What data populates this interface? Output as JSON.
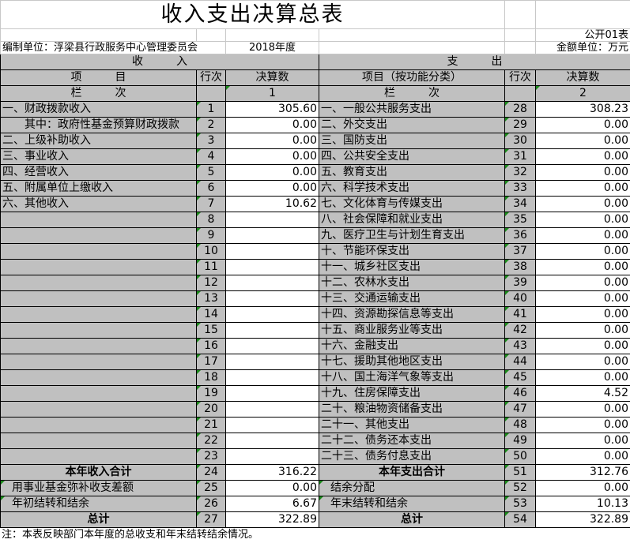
{
  "title": "收入支出决算总表",
  "form_code": "公开01表",
  "unit_label": "编制单位：浮梁县行政服务中心管理委员会",
  "year": "2018年度",
  "amount_unit": "金额单位：万元",
  "headers": {
    "income": "收　　　入",
    "expense": "支　　　出",
    "income_item": "项　　　目",
    "expense_item": "项目（按功能分类）",
    "line_no": "行次",
    "amount": "决算数",
    "column_label": "栏　　　次",
    "income_col": "1",
    "expense_col": "2"
  },
  "rows": [
    {
      "in_item": "一、财政拨款收入",
      "in_line": "1",
      "in_amt": "305.60",
      "ex_item": "一、一般公共服务支出",
      "ex_line": "28",
      "ex_amt": "308.23"
    },
    {
      "in_item": "　　其中：政府性基金预算财政拨款",
      "in_line": "2",
      "in_amt": "0.00",
      "ex_item": "二、外交支出",
      "ex_line": "29",
      "ex_amt": "0.00"
    },
    {
      "in_item": "二、上级补助收入",
      "in_line": "3",
      "in_amt": "0.00",
      "ex_item": "三、国防支出",
      "ex_line": "30",
      "ex_amt": "0.00"
    },
    {
      "in_item": "三、事业收入",
      "in_line": "4",
      "in_amt": "0.00",
      "ex_item": "四、公共安全支出",
      "ex_line": "31",
      "ex_amt": "0.00"
    },
    {
      "in_item": "四、经营收入",
      "in_line": "5",
      "in_amt": "0.00",
      "ex_item": "五、教育支出",
      "ex_line": "32",
      "ex_amt": "0.00"
    },
    {
      "in_item": "五、附属单位上缴收入",
      "in_line": "6",
      "in_amt": "0.00",
      "ex_item": "六、科学技术支出",
      "ex_line": "33",
      "ex_amt": "0.00"
    },
    {
      "in_item": "六、其他收入",
      "in_line": "7",
      "in_amt": "10.62",
      "ex_item": "七、文化体育与传媒支出",
      "ex_line": "34",
      "ex_amt": "0.00"
    },
    {
      "in_item": "",
      "in_line": "8",
      "in_amt": "",
      "ex_item": "八、社会保障和就业支出",
      "ex_line": "35",
      "ex_amt": "0.00"
    },
    {
      "in_item": "",
      "in_line": "9",
      "in_amt": "",
      "ex_item": "九、医疗卫生与计划生育支出",
      "ex_line": "36",
      "ex_amt": "0.00"
    },
    {
      "in_item": "",
      "in_line": "10",
      "in_amt": "",
      "ex_item": "十、节能环保支出",
      "ex_line": "37",
      "ex_amt": "0.00"
    },
    {
      "in_item": "",
      "in_line": "11",
      "in_amt": "",
      "ex_item": "十一、城乡社区支出",
      "ex_line": "38",
      "ex_amt": "0.00"
    },
    {
      "in_item": "",
      "in_line": "12",
      "in_amt": "",
      "ex_item": "十二、农林水支出",
      "ex_line": "39",
      "ex_amt": "0.00"
    },
    {
      "in_item": "",
      "in_line": "13",
      "in_amt": "",
      "ex_item": "十三、交通运输支出",
      "ex_line": "40",
      "ex_amt": "0.00"
    },
    {
      "in_item": "",
      "in_line": "14",
      "in_amt": "",
      "ex_item": "十四、资源勘探信息等支出",
      "ex_line": "41",
      "ex_amt": "0.00"
    },
    {
      "in_item": "",
      "in_line": "15",
      "in_amt": "",
      "ex_item": "十五、商业服务业等支出",
      "ex_line": "42",
      "ex_amt": "0.00"
    },
    {
      "in_item": "",
      "in_line": "16",
      "in_amt": "",
      "ex_item": "十六、金融支出",
      "ex_line": "43",
      "ex_amt": "0.00"
    },
    {
      "in_item": "",
      "in_line": "17",
      "in_amt": "",
      "ex_item": "十七、援助其他地区支出",
      "ex_line": "44",
      "ex_amt": "0.00"
    },
    {
      "in_item": "",
      "in_line": "18",
      "in_amt": "",
      "ex_item": "十八、国土海洋气象等支出",
      "ex_line": "45",
      "ex_amt": "0.00"
    },
    {
      "in_item": "",
      "in_line": "19",
      "in_amt": "",
      "ex_item": "十九、住房保障支出",
      "ex_line": "46",
      "ex_amt": "4.52"
    },
    {
      "in_item": "",
      "in_line": "20",
      "in_amt": "",
      "ex_item": "二十、粮油物资储备支出",
      "ex_line": "47",
      "ex_amt": "0.00"
    },
    {
      "in_item": "",
      "in_line": "21",
      "in_amt": "",
      "ex_item": "二十一、其他支出",
      "ex_line": "48",
      "ex_amt": "0.00"
    },
    {
      "in_item": "",
      "in_line": "22",
      "in_amt": "",
      "ex_item": "二十二、债务还本支出",
      "ex_line": "49",
      "ex_amt": "0.00"
    },
    {
      "in_item": "",
      "in_line": "23",
      "in_amt": "",
      "ex_item": "二十三、债务付息支出",
      "ex_line": "50",
      "ex_amt": "0.00"
    }
  ],
  "summary": [
    {
      "in_item": "本年收入合计",
      "in_line": "24",
      "in_amt": "316.22",
      "ex_item": "本年支出合计",
      "ex_line": "51",
      "ex_amt": "312.76",
      "bold": true
    },
    {
      "in_item": "用事业基金弥补收支差额",
      "in_line": "25",
      "in_amt": "0.00",
      "ex_item": "结余分配",
      "ex_line": "52",
      "ex_amt": "0.00",
      "bold": false
    },
    {
      "in_item": "年初结转和结余",
      "in_line": "26",
      "in_amt": "6.67",
      "ex_item": "年末结转和结余",
      "ex_line": "53",
      "ex_amt": "10.13",
      "bold": false
    },
    {
      "in_item": "总计",
      "in_line": "27",
      "in_amt": "322.89",
      "ex_item": "总计",
      "ex_line": "54",
      "ex_amt": "322.89",
      "bold": true
    }
  ],
  "note": "注：本表反映部门本年度的总收支和年末结转结余情况。",
  "colors": {
    "header_gray": "#c0c0c0",
    "marker_green": "#1a8a1a"
  }
}
